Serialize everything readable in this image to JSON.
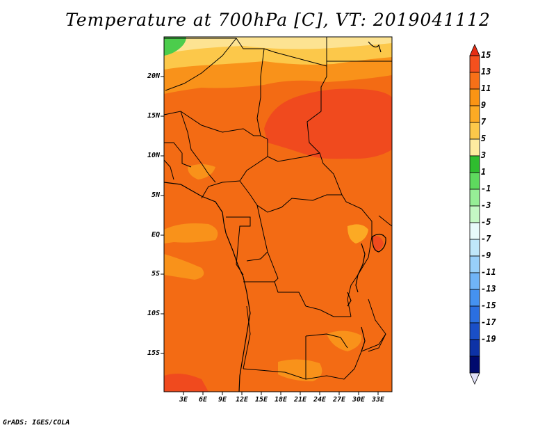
{
  "title": "Temperature at 700hPa [C], VT: 2019041112",
  "credit": "GrADS: IGES/COLA",
  "map": {
    "lat_labels": [
      "20N",
      "15N",
      "10N",
      "5N",
      "EQ",
      "5S",
      "10S",
      "15S"
    ],
    "lon_labels": [
      "3E",
      "6E",
      "9E",
      "12E",
      "15E",
      "18E",
      "21E",
      "24E",
      "27E",
      "30E",
      "33E"
    ]
  },
  "colorbar": {
    "labels": [
      "15",
      "13",
      "11",
      "9",
      "7",
      "5",
      "3",
      "1",
      "-1",
      "-3",
      "-5",
      "-7",
      "-9",
      "-11",
      "-13",
      "-15",
      "-17",
      "-19"
    ],
    "colors": [
      "#e62e14",
      "#f5501e",
      "#f77018",
      "#fa9414",
      "#fcaa24",
      "#fcc84a",
      "#feeba0",
      "#2fbd2f",
      "#5ed95e",
      "#96ee96",
      "#c4f8c4",
      "#e8fafa",
      "#bfe7f9",
      "#98d0f9",
      "#70b4f6",
      "#4592f0",
      "#2b6fe0",
      "#1a4fc7",
      "#0d32a6",
      "#000a6e",
      "#e0e0f8"
    ]
  },
  "colors": {
    "base": "#f36b14",
    "warm": "#f04a1e",
    "cool_orange": "#f9921a",
    "yellow": "#fde392",
    "green": "#4ccd4c"
  }
}
